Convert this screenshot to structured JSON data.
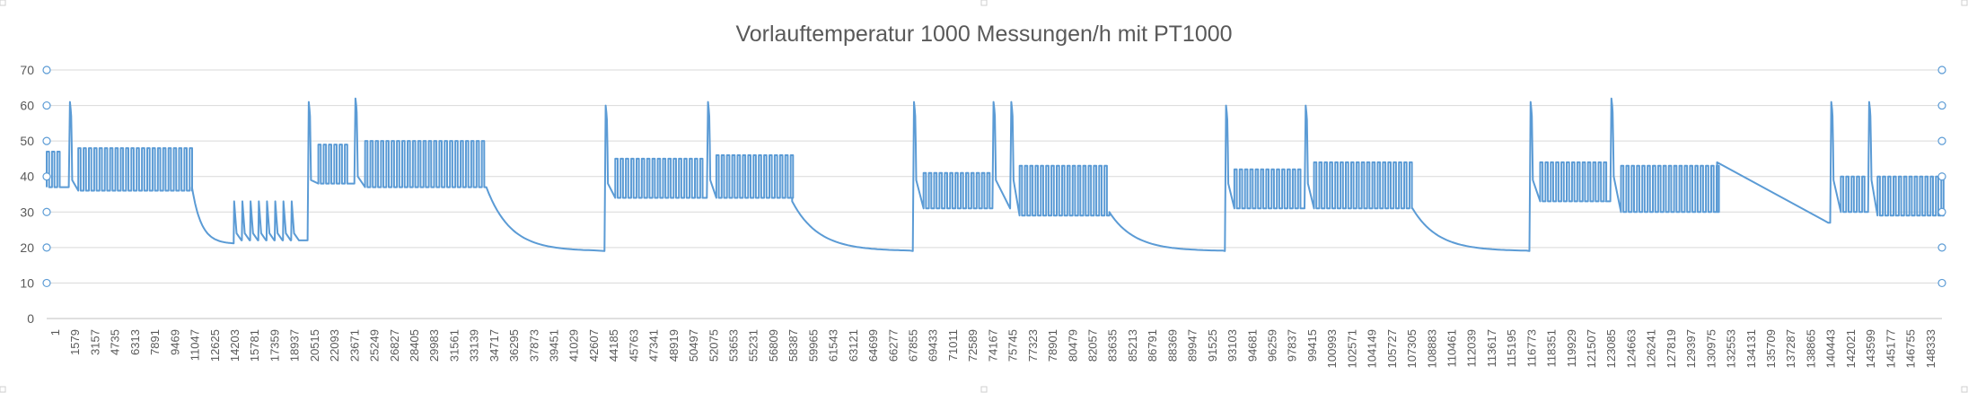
{
  "chart_data": {
    "type": "line",
    "title": "Vorlauftemperatur 1000 Messungen/h mit PT1000",
    "xlabel": "",
    "ylabel": "",
    "ylim": [
      0,
      70
    ],
    "yticks": [
      "0",
      "10",
      "20",
      "30",
      "40",
      "50",
      "60",
      "70"
    ],
    "xlim": [
      1,
      150000
    ],
    "xtick_labels": [
      "1",
      "1579",
      "3157",
      "4735",
      "6313",
      "7891",
      "9469",
      "11047",
      "12625",
      "14203",
      "15781",
      "17359",
      "18937",
      "20515",
      "22093",
      "23671",
      "25249",
      "26827",
      "28405",
      "29983",
      "31561",
      "33139",
      "34717",
      "36295",
      "37873",
      "39451",
      "41029",
      "42607",
      "44185",
      "45763",
      "47341",
      "48919",
      "50497",
      "52075",
      "53653",
      "55231",
      "56809",
      "58387",
      "59965",
      "61543",
      "63121",
      "64699",
      "66277",
      "67855",
      "69433",
      "71011",
      "72589",
      "74167",
      "75745",
      "77323",
      "78901",
      "80479",
      "82057",
      "83635",
      "85213",
      "86791",
      "88369",
      "89947",
      "91525",
      "93103",
      "94681",
      "96259",
      "97837",
      "99415",
      "100993",
      "102571",
      "104149",
      "105727",
      "107305",
      "108883",
      "110461",
      "112039",
      "113617",
      "115195",
      "116773",
      "118351",
      "119929",
      "121507",
      "123085",
      "124663",
      "126241",
      "127819",
      "129397",
      "130975",
      "132553",
      "134131",
      "135709",
      "137287",
      "138865",
      "140443",
      "142021",
      "143599",
      "145177",
      "146755",
      "148333"
    ],
    "grid": true,
    "legend": "none",
    "color": "#5b9bd5",
    "series": [
      {
        "segments": [
          {
            "kind": "osc",
            "x0": 1,
            "x1": 1200,
            "lo": 37,
            "hi": 47
          },
          {
            "kind": "spike",
            "x": 1900,
            "peak": 61
          },
          {
            "kind": "osc",
            "x0": 2500,
            "x1": 11500,
            "lo": 36,
            "hi": 48
          },
          {
            "kind": "decay",
            "x0": 11500,
            "x1": 14800,
            "from": 37,
            "to": 21
          },
          {
            "kind": "spikes",
            "x0": 14800,
            "x1": 20000,
            "lo": 22,
            "hi": 33,
            "n": 8
          },
          {
            "kind": "spike",
            "x": 20800,
            "peak": 61
          },
          {
            "kind": "osc",
            "x0": 21500,
            "x1": 24000,
            "lo": 38,
            "hi": 49
          },
          {
            "kind": "spike",
            "x": 24500,
            "peak": 62
          },
          {
            "kind": "osc",
            "x0": 25200,
            "x1": 34800,
            "lo": 37,
            "hi": 50
          },
          {
            "kind": "decay",
            "x0": 34800,
            "x1": 43300,
            "from": 37,
            "to": 19
          },
          {
            "kind": "spike",
            "x": 44300,
            "peak": 60
          },
          {
            "kind": "osc",
            "x0": 45000,
            "x1": 51900,
            "lo": 34,
            "hi": 45
          },
          {
            "kind": "spike",
            "x": 52400,
            "peak": 61
          },
          {
            "kind": "osc",
            "x0": 53000,
            "x1": 59000,
            "lo": 34,
            "hi": 46
          },
          {
            "kind": "decay",
            "x0": 59000,
            "x1": 68300,
            "from": 33,
            "to": 19
          },
          {
            "kind": "spike",
            "x": 68700,
            "peak": 61
          },
          {
            "kind": "osc",
            "x0": 69400,
            "x1": 74700,
            "lo": 31,
            "hi": 41
          },
          {
            "kind": "spike",
            "x": 75000,
            "peak": 61
          },
          {
            "kind": "spike",
            "x": 76400,
            "peak": 61
          },
          {
            "kind": "osc",
            "x0": 77000,
            "x1": 84100,
            "lo": 29,
            "hi": 43
          },
          {
            "kind": "decay",
            "x0": 84100,
            "x1": 93100,
            "from": 30,
            "to": 19
          },
          {
            "kind": "spike",
            "x": 93400,
            "peak": 60
          },
          {
            "kind": "osc",
            "x0": 94000,
            "x1": 99400,
            "lo": 31,
            "hi": 42
          },
          {
            "kind": "spike",
            "x": 99700,
            "peak": 60
          },
          {
            "kind": "osc",
            "x0": 100300,
            "x1": 108100,
            "lo": 31,
            "hi": 44
          },
          {
            "kind": "decay",
            "x0": 108100,
            "x1": 117100,
            "from": 31,
            "to": 19
          },
          {
            "kind": "spike",
            "x": 117500,
            "peak": 61
          },
          {
            "kind": "osc",
            "x0": 118200,
            "x1": 123400,
            "lo": 33,
            "hi": 44
          },
          {
            "kind": "spike",
            "x": 123900,
            "peak": 62
          },
          {
            "kind": "osc",
            "x0": 124600,
            "x1": 132200,
            "lo": 30,
            "hi": 43
          },
          {
            "kind": "ramp",
            "x0": 132200,
            "x1": 141000,
            "from": 44,
            "to": 27
          },
          {
            "kind": "spike",
            "x": 141300,
            "peak": 61
          },
          {
            "kind": "osc",
            "x0": 142000,
            "x1": 143900,
            "lo": 30,
            "hi": 40
          },
          {
            "kind": "spike",
            "x": 144300,
            "peak": 61
          },
          {
            "kind": "osc",
            "x0": 144900,
            "x1": 150000,
            "lo": 29,
            "hi": 40
          }
        ]
      }
    ]
  }
}
